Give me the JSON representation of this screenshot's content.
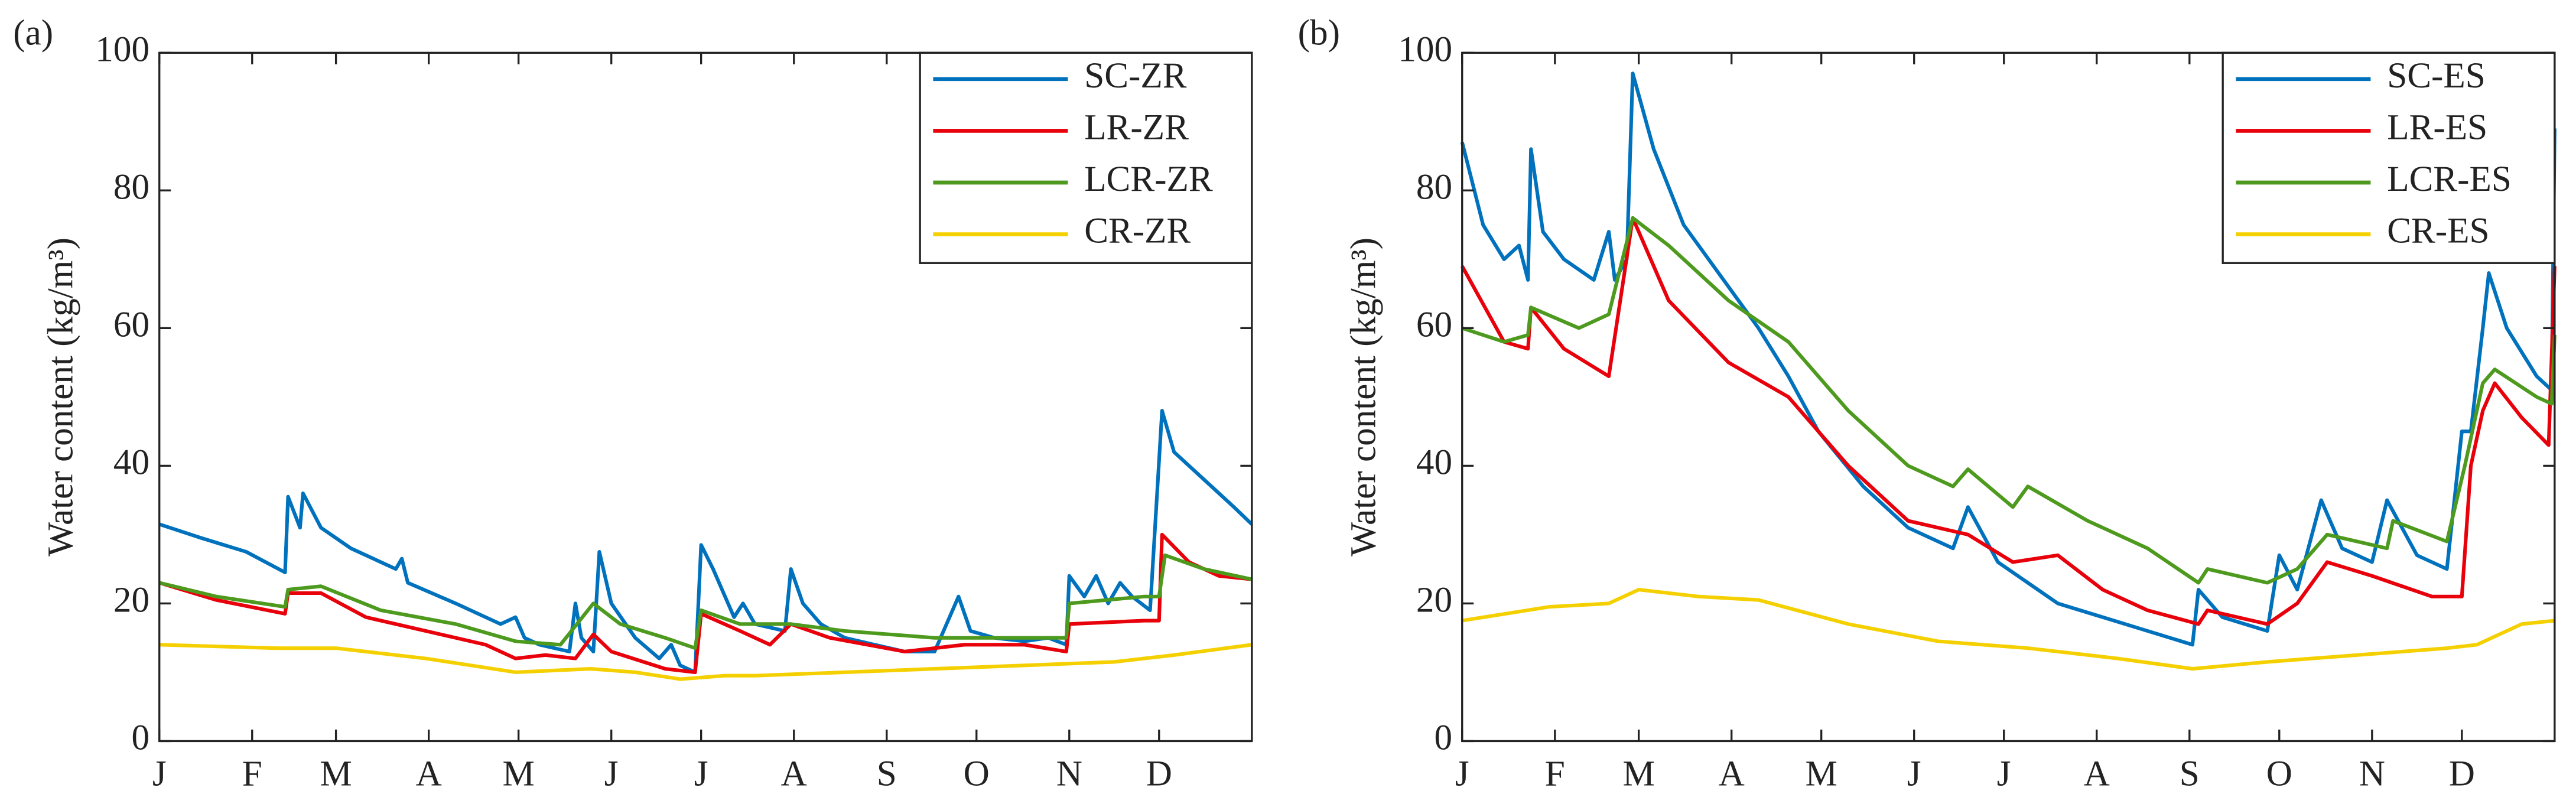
{
  "chart_data": [
    {
      "type": "line",
      "panel_label": "(a)",
      "ylabel": "Water content (kg/m³)",
      "xlim": [
        1,
        366
      ],
      "ylim": [
        0,
        100
      ],
      "yticks": [
        0,
        20,
        40,
        60,
        80,
        100
      ],
      "xticks": [
        {
          "value": 1,
          "label": "J"
        },
        {
          "value": 32,
          "label": "F"
        },
        {
          "value": 60,
          "label": "M"
        },
        {
          "value": 91,
          "label": "A"
        },
        {
          "value": 121,
          "label": "M"
        },
        {
          "value": 152,
          "label": "J"
        },
        {
          "value": 182,
          "label": "J"
        },
        {
          "value": 213,
          "label": "A"
        },
        {
          "value": 244,
          "label": "S"
        },
        {
          "value": 274,
          "label": "O"
        },
        {
          "value": 305,
          "label": "N"
        },
        {
          "value": 335,
          "label": "D"
        }
      ],
      "legend": "upper right",
      "grid": false,
      "series": [
        {
          "name": "SC-ZR",
          "color": "#0072bd",
          "x": [
            1,
            15,
            30,
            43,
            44,
            48,
            49,
            55,
            65,
            80,
            82,
            84,
            100,
            115,
            120,
            123,
            128,
            138,
            140,
            142,
            146,
            148,
            152,
            160,
            168,
            172,
            175,
            180,
            182,
            186,
            190,
            193,
            196,
            200,
            210,
            212,
            216,
            222,
            230,
            240,
            250,
            260,
            268,
            272,
            280,
            290,
            298,
            304,
            305,
            310,
            314,
            318,
            322,
            326,
            332,
            336,
            340,
            350,
            360,
            366
          ],
          "values": [
            31.5,
            29.5,
            27.5,
            24.5,
            35.5,
            31,
            36,
            31,
            28,
            25,
            26.5,
            23,
            20,
            17,
            18,
            15,
            14,
            13,
            20,
            15,
            13,
            27.5,
            20,
            15,
            12,
            14,
            11,
            10,
            28.5,
            25,
            21,
            18,
            20,
            17,
            16,
            25,
            20,
            17,
            15,
            14,
            13,
            13,
            21,
            16,
            15,
            14.5,
            15,
            14,
            24,
            21,
            24,
            20,
            23,
            21,
            19,
            48,
            42,
            38,
            34,
            31.5
          ]
        },
        {
          "name": "LR-ZR",
          "color": "#e8000b",
          "x": [
            1,
            20,
            43,
            44,
            55,
            70,
            90,
            110,
            120,
            130,
            140,
            146,
            152,
            170,
            180,
            182,
            195,
            205,
            212,
            225,
            250,
            270,
            290,
            304,
            305,
            330,
            335,
            336,
            345,
            355,
            366
          ],
          "values": [
            23,
            20.5,
            18.5,
            21.5,
            21.5,
            18,
            16,
            14,
            12,
            12.5,
            12,
            15.5,
            13,
            10.5,
            10,
            18.5,
            16,
            14,
            17,
            15,
            13,
            14,
            14,
            13,
            17,
            17.5,
            17.5,
            30,
            26,
            24,
            23.5
          ]
        },
        {
          "name": "LCR-ZR",
          "color": "#4d9a1e",
          "x": [
            1,
            20,
            43,
            44,
            55,
            75,
            100,
            120,
            135,
            146,
            155,
            170,
            180,
            182,
            195,
            212,
            230,
            260,
            290,
            304,
            305,
            330,
            335,
            337,
            350,
            366
          ],
          "values": [
            23,
            21,
            19.5,
            22,
            22.5,
            19,
            17,
            14.5,
            14,
            20,
            17,
            15,
            13.5,
            19,
            17,
            17,
            16,
            15,
            15,
            15,
            20,
            21,
            21,
            27,
            25,
            23.5
          ]
        },
        {
          "name": "CR-ZR",
          "color": "#f5d000",
          "x": [
            1,
            40,
            60,
            90,
            120,
            145,
            160,
            175,
            190,
            200,
            230,
            260,
            290,
            320,
            340,
            366
          ],
          "values": [
            14,
            13.5,
            13.5,
            12,
            10,
            10.5,
            10,
            9,
            9.5,
            9.5,
            10,
            10.5,
            11,
            11.5,
            12.5,
            14
          ]
        }
      ]
    },
    {
      "type": "line",
      "panel_label": "(b)",
      "ylabel": "Water content (kg/m³)",
      "xlim": [
        1,
        366
      ],
      "ylim": [
        0,
        100
      ],
      "yticks": [
        0,
        20,
        40,
        60,
        80,
        100
      ],
      "xticks": [
        {
          "value": 1,
          "label": "J"
        },
        {
          "value": 32,
          "label": "F"
        },
        {
          "value": 60,
          "label": "M"
        },
        {
          "value": 91,
          "label": "A"
        },
        {
          "value": 121,
          "label": "M"
        },
        {
          "value": 152,
          "label": "J"
        },
        {
          "value": 182,
          "label": "J"
        },
        {
          "value": 213,
          "label": "A"
        },
        {
          "value": 244,
          "label": "S"
        },
        {
          "value": 274,
          "label": "O"
        },
        {
          "value": 305,
          "label": "N"
        },
        {
          "value": 335,
          "label": "D"
        }
      ],
      "legend": "upper right",
      "grid": false,
      "series": [
        {
          "name": "SC-ES",
          "color": "#0072bd",
          "x": [
            1,
            8,
            15,
            20,
            23,
            24,
            28,
            35,
            45,
            50,
            52,
            56,
            58,
            65,
            75,
            90,
            100,
            110,
            120,
            135,
            150,
            165,
            170,
            180,
            190,
            200,
            215,
            230,
            245,
            247,
            255,
            270,
            274,
            280,
            288,
            295,
            305,
            310,
            320,
            330,
            335,
            338,
            342,
            344,
            350,
            360,
            365,
            366
          ],
          "values": [
            87,
            75,
            70,
            72,
            67,
            86,
            74,
            70,
            67,
            74,
            67,
            70,
            97,
            86,
            75,
            66,
            60,
            53,
            45,
            37,
            31,
            28,
            34,
            26,
            23,
            20,
            18,
            16,
            14,
            22,
            18,
            16,
            27,
            22,
            35,
            28,
            26,
            35,
            27,
            25,
            45,
            45,
            60,
            68,
            60,
            53,
            51,
            89
          ]
        },
        {
          "name": "LR-ES",
          "color": "#e8000b",
          "x": [
            1,
            15,
            23,
            24,
            35,
            50,
            58,
            70,
            90,
            110,
            130,
            150,
            170,
            185,
            200,
            215,
            230,
            247,
            250,
            270,
            280,
            290,
            305,
            325,
            335,
            338,
            342,
            346,
            355,
            364,
            366
          ],
          "values": [
            69,
            58,
            57,
            63,
            57,
            53,
            76,
            64,
            55,
            50,
            40,
            32,
            30,
            26,
            27,
            22,
            19,
            17,
            19,
            17,
            20,
            26,
            24,
            21,
            21,
            40,
            48,
            52,
            47,
            43,
            69
          ]
        },
        {
          "name": "LCR-ES",
          "color": "#4d9a1e",
          "x": [
            1,
            15,
            23,
            24,
            40,
            50,
            58,
            70,
            90,
            110,
            130,
            150,
            165,
            170,
            185,
            190,
            210,
            230,
            247,
            250,
            270,
            280,
            290,
            310,
            312,
            330,
            336,
            342,
            346,
            360,
            365,
            366
          ],
          "values": [
            60,
            58,
            59,
            63,
            60,
            62,
            76,
            72,
            64,
            58,
            48,
            40,
            37,
            39.5,
            34,
            37,
            32,
            28,
            23,
            25,
            23,
            25,
            30,
            28,
            32,
            29,
            40,
            52,
            54,
            50,
            49,
            59
          ]
        },
        {
          "name": "CR-ES",
          "color": "#f5d000",
          "x": [
            1,
            30,
            50,
            60,
            80,
            100,
            130,
            160,
            190,
            220,
            245,
            270,
            300,
            330,
            340,
            355,
            366
          ],
          "values": [
            17.5,
            19.5,
            20,
            22,
            21,
            20.5,
            17,
            14.5,
            13.5,
            12,
            10.5,
            11.5,
            12.5,
            13.5,
            14,
            17,
            17.5
          ]
        }
      ]
    }
  ]
}
